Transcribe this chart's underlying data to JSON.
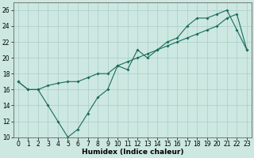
{
  "xlabel": "Humidex (Indice chaleur)",
  "background_color": "#cce8e0",
  "grid_color": "#aacccc",
  "line_color": "#1a6b5a",
  "line1_x": [
    0,
    1,
    2,
    3,
    4,
    5,
    6,
    7,
    8,
    9,
    10,
    11,
    12,
    13,
    14,
    15,
    16,
    17,
    18,
    19,
    20,
    21,
    22,
    23
  ],
  "line1_y": [
    17,
    16,
    16,
    14,
    12,
    10,
    11,
    13,
    15,
    16,
    19,
    18.5,
    21,
    20,
    21,
    22,
    22.5,
    24,
    25,
    25,
    25.5,
    26,
    23.5,
    21
  ],
  "line2_x": [
    0,
    1,
    2,
    3,
    4,
    5,
    6,
    7,
    8,
    9,
    10,
    11,
    12,
    13,
    14,
    15,
    16,
    17,
    18,
    19,
    20,
    21,
    22,
    23
  ],
  "line2_y": [
    17,
    16,
    16,
    16.5,
    16.8,
    17,
    17,
    17.5,
    18,
    18,
    19,
    19.5,
    20,
    20.5,
    21,
    21.5,
    22,
    22.5,
    23,
    23.5,
    24,
    25,
    25.5,
    21
  ],
  "ylim": [
    10,
    27
  ],
  "xlim": [
    -0.5,
    23.5
  ],
  "yticks": [
    10,
    12,
    14,
    16,
    18,
    20,
    22,
    24,
    26
  ],
  "xticks": [
    0,
    1,
    2,
    3,
    4,
    5,
    6,
    7,
    8,
    9,
    10,
    11,
    12,
    13,
    14,
    15,
    16,
    17,
    18,
    19,
    20,
    21,
    22,
    23
  ],
  "tick_fontsize": 5.5,
  "xlabel_fontsize": 6.5
}
